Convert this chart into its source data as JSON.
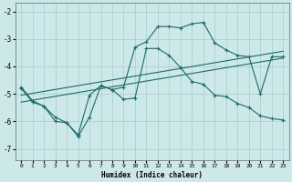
{
  "xlabel": "Humidex (Indice chaleur)",
  "bg_color": "#cde8e8",
  "grid_color": "#a8cccc",
  "line_color": "#1a6b6b",
  "xlim": [
    -0.5,
    23.5
  ],
  "ylim": [
    -7.4,
    -1.7
  ],
  "yticks": [
    -7,
    -6,
    -5,
    -4,
    -3,
    -2
  ],
  "xticks": [
    0,
    1,
    2,
    3,
    4,
    5,
    6,
    7,
    8,
    9,
    10,
    11,
    12,
    13,
    14,
    15,
    16,
    17,
    18,
    19,
    20,
    21,
    22,
    23
  ],
  "curve1_x": [
    0,
    1,
    2,
    3,
    4,
    5,
    6,
    7,
    8,
    9,
    10,
    11,
    12,
    13,
    14,
    15,
    16,
    17,
    18,
    19,
    20,
    21,
    22,
    23
  ],
  "curve1_y": [
    -4.75,
    -5.25,
    -5.45,
    -6.0,
    -6.05,
    -6.55,
    -5.85,
    -4.7,
    -4.85,
    -4.75,
    -3.3,
    -3.1,
    -2.55,
    -2.55,
    -2.6,
    -2.45,
    -2.4,
    -3.15,
    -3.4,
    -3.6,
    -3.65,
    -5.0,
    -3.65,
    -3.65
  ],
  "curve2_x": [
    0,
    1,
    2,
    3,
    4,
    5,
    6,
    7,
    8,
    9,
    10,
    11,
    12,
    13,
    14,
    15,
    16,
    17,
    18,
    19,
    20,
    21,
    22,
    23
  ],
  "curve2_y": [
    -4.8,
    -5.3,
    -5.45,
    -5.85,
    -6.05,
    -6.5,
    -5.05,
    -4.7,
    -4.85,
    -5.2,
    -5.15,
    -3.35,
    -3.35,
    -3.6,
    -4.05,
    -4.55,
    -4.65,
    -5.05,
    -5.1,
    -5.35,
    -5.5,
    -5.8,
    -5.9,
    -5.95
  ],
  "line3_x": [
    0,
    23
  ],
  "line3_y": [
    -5.3,
    -3.7
  ],
  "line4_x": [
    0,
    23
  ],
  "line4_y": [
    -5.05,
    -3.45
  ],
  "line_width": 0.8,
  "marker_size": 2.5
}
